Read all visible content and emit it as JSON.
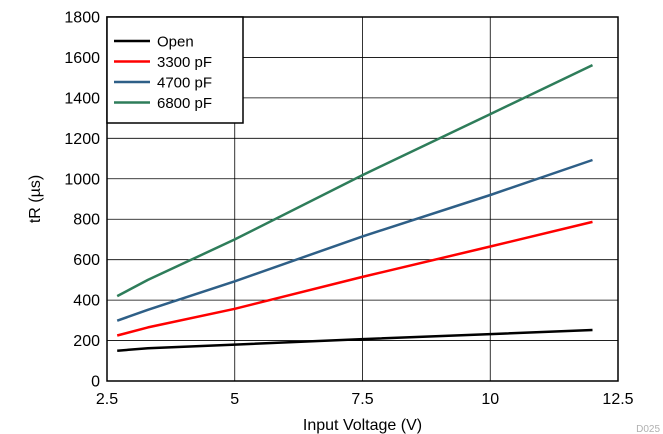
{
  "chart_data": {
    "type": "line",
    "title": "",
    "xlabel": "Input Voltage (V)",
    "ylabel": "tR (µs)",
    "xlim": [
      2.5,
      12.5
    ],
    "ylim": [
      0,
      1800
    ],
    "xticks": [
      2.5,
      5,
      7.5,
      10,
      12.5
    ],
    "xtick_labels": [
      "2.5",
      "5",
      "7.5",
      "10",
      "12.5"
    ],
    "yticks": [
      0,
      200,
      400,
      600,
      800,
      1000,
      1200,
      1400,
      1600,
      1800
    ],
    "ytick_labels": [
      "0",
      "200",
      "400",
      "600",
      "800",
      "1000",
      "1200",
      "1400",
      "1600",
      "1800"
    ],
    "grid": true,
    "legend_position": "top-left",
    "footnote": "D025",
    "series": [
      {
        "name": "Open",
        "color": "#000000",
        "x": [
          2.7,
          3.3,
          5,
          7.5,
          10,
          12
        ],
        "y": [
          150,
          162,
          180,
          207,
          232,
          252
        ]
      },
      {
        "name": "3300 pF",
        "color": "#ff0000",
        "x": [
          2.7,
          3.3,
          5,
          7.5,
          10,
          12
        ],
        "y": [
          225,
          265,
          357,
          515,
          665,
          787
        ]
      },
      {
        "name": "4700 pF",
        "color": "#2e5f87",
        "x": [
          2.7,
          3.3,
          5,
          7.5,
          10,
          12
        ],
        "y": [
          298,
          352,
          493,
          715,
          920,
          1093
        ]
      },
      {
        "name": "6800 pF",
        "color": "#2e7d5a",
        "x": [
          2.7,
          3.3,
          5,
          7.5,
          10,
          12
        ],
        "y": [
          420,
          500,
          700,
          1018,
          1320,
          1562
        ]
      }
    ]
  }
}
